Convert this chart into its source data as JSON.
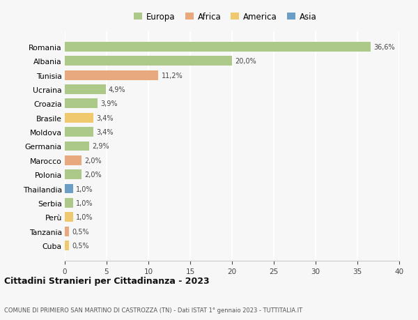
{
  "countries": [
    "Romania",
    "Albania",
    "Tunisia",
    "Ucraina",
    "Croazia",
    "Brasile",
    "Moldova",
    "Germania",
    "Marocco",
    "Polonia",
    "Thailandia",
    "Serbia",
    "Perù",
    "Tanzania",
    "Cuba"
  ],
  "values": [
    36.6,
    20.0,
    11.2,
    4.9,
    3.9,
    3.4,
    3.4,
    2.9,
    2.0,
    2.0,
    1.0,
    1.0,
    1.0,
    0.5,
    0.5
  ],
  "labels": [
    "36,6%",
    "20,0%",
    "11,2%",
    "4,9%",
    "3,9%",
    "3,4%",
    "3,4%",
    "2,9%",
    "2,0%",
    "2,0%",
    "1,0%",
    "1,0%",
    "1,0%",
    "0,5%",
    "0,5%"
  ],
  "colors": [
    "#adc98a",
    "#adc98a",
    "#e8a97e",
    "#adc98a",
    "#adc98a",
    "#f0c96e",
    "#adc98a",
    "#adc98a",
    "#e8a97e",
    "#adc98a",
    "#6b9ec7",
    "#adc98a",
    "#f0c96e",
    "#e8a97e",
    "#f0c96e"
  ],
  "legend_labels": [
    "Europa",
    "Africa",
    "America",
    "Asia"
  ],
  "legend_colors": [
    "#adc98a",
    "#e8a97e",
    "#f0c96e",
    "#6b9ec7"
  ],
  "title": "Cittadini Stranieri per Cittadinanza - 2023",
  "subtitle": "COMUNE DI PRIMIERO SAN MARTINO DI CASTROZZA (TN) - Dati ISTAT 1° gennaio 2023 - TUTTITALIA.IT",
  "xlim": [
    0,
    40
  ],
  "xticks": [
    0,
    5,
    10,
    15,
    20,
    25,
    30,
    35,
    40
  ],
  "background_color": "#f7f7f7",
  "grid_color": "#ffffff",
  "bar_height": 0.68
}
